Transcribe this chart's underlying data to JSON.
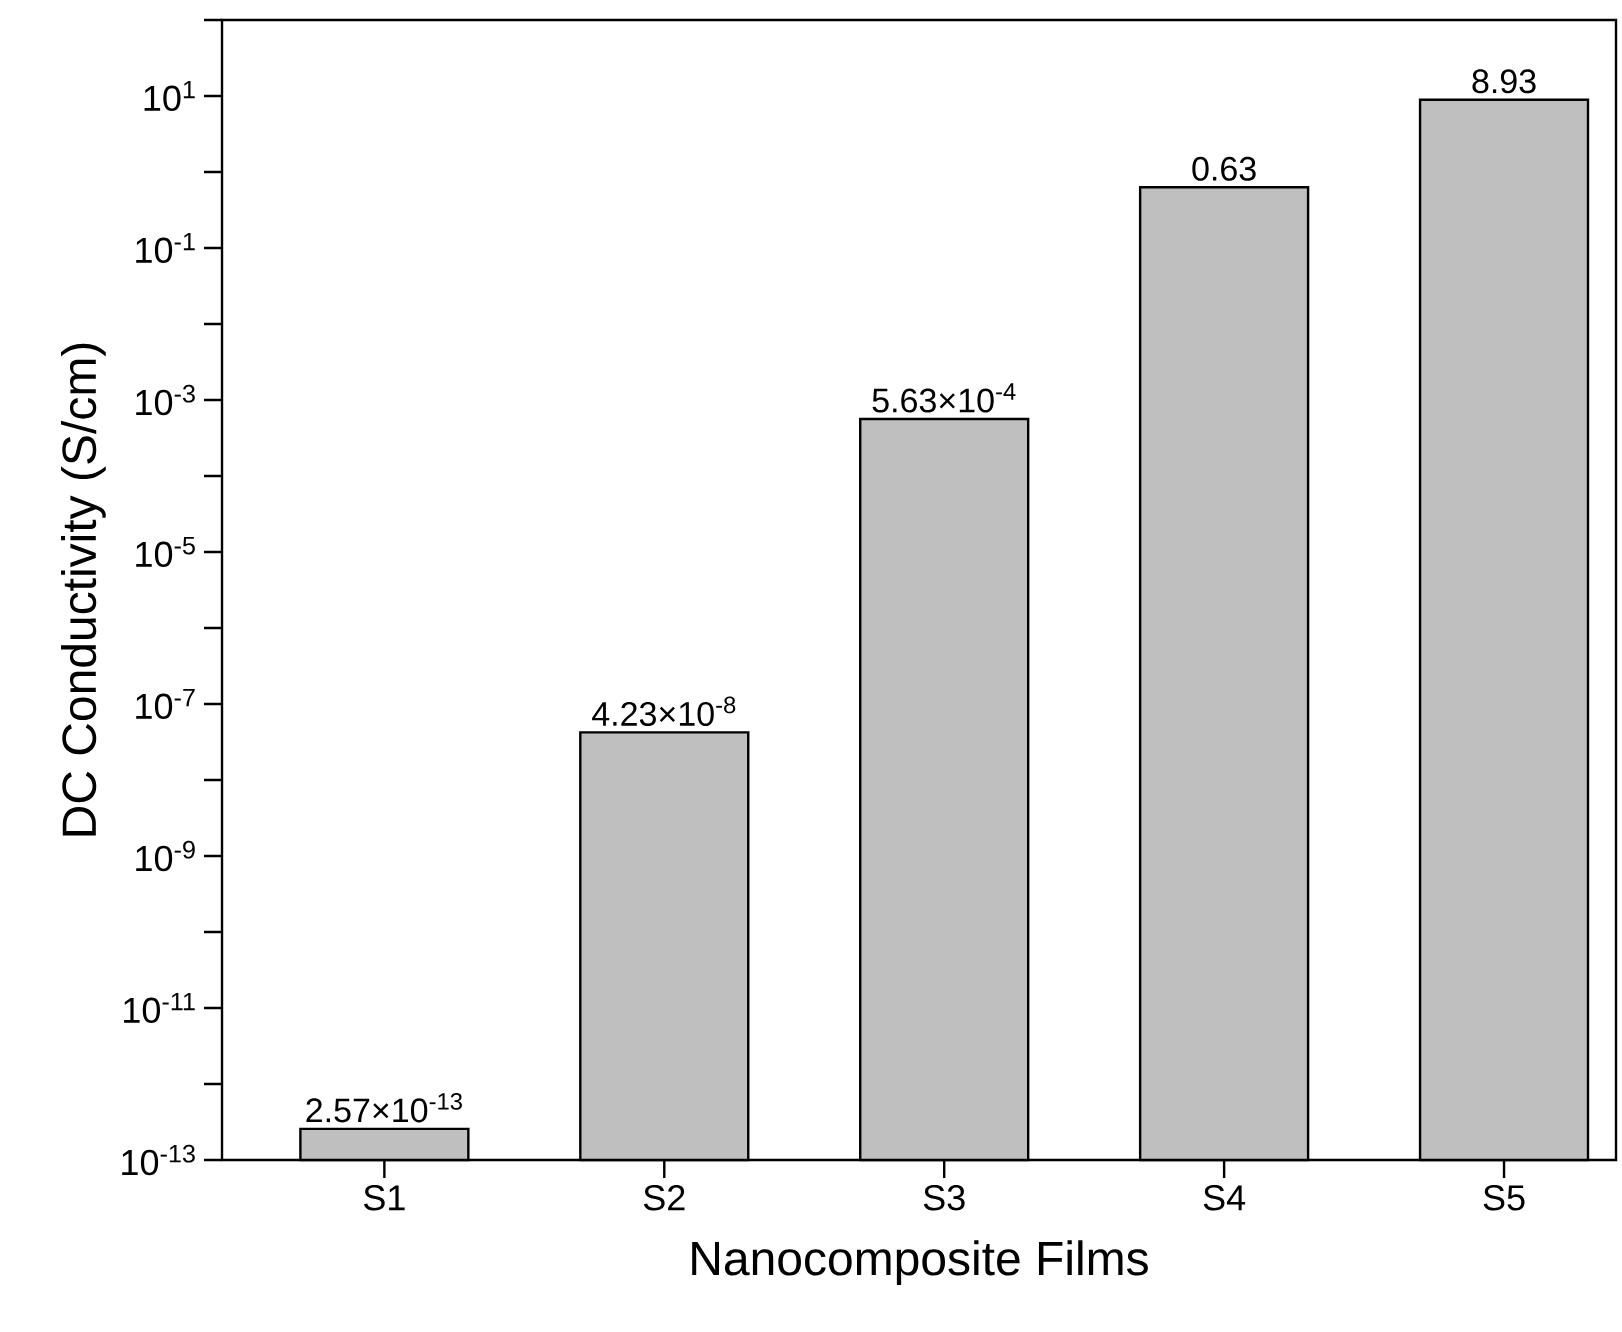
{
  "chart_data": {
    "type": "bar",
    "xlabel": "Nanocomposite Films",
    "ylabel": "DC Conductivity (S/cm)",
    "categories": [
      "S1",
      "S2",
      "S3",
      "S4",
      "S5"
    ],
    "values": [
      2.57e-13,
      4.23e-08,
      0.000563,
      0.63,
      8.93
    ],
    "value_labels": [
      "2.57×10$^{-13}$",
      "4.23×10$^{-8}$",
      "5.63×10$^{-4}$",
      "0.63",
      "8.93"
    ],
    "color": "#bfbfbf",
    "log": true,
    "ylim": [
      1e-13,
      100
    ],
    "yticks": [
      {
        "value": 1e-13,
        "label": "10$^{-13}$"
      },
      {
        "value": 1e-12,
        "label": null
      },
      {
        "value": 1e-11,
        "label": "10$^{-11}$"
      },
      {
        "value": 1e-10,
        "label": null
      },
      {
        "value": 1e-09,
        "label": "10$^{-9}$"
      },
      {
        "value": 1e-08,
        "label": null
      },
      {
        "value": 1e-07,
        "label": "10$^{-7}$"
      },
      {
        "value": 1e-06,
        "label": null
      },
      {
        "value": 1e-05,
        "label": "10$^{-5}$"
      },
      {
        "value": 0.0001,
        "label": null
      },
      {
        "value": 0.001,
        "label": "10$^{-3}$"
      },
      {
        "value": 0.01,
        "label": null
      },
      {
        "value": 0.1,
        "label": "10$^{-1}$"
      },
      {
        "value": 1,
        "label": null
      },
      {
        "value": 10,
        "label": "10$^{1}$"
      },
      {
        "value": 100,
        "label": null
      }
    ]
  }
}
